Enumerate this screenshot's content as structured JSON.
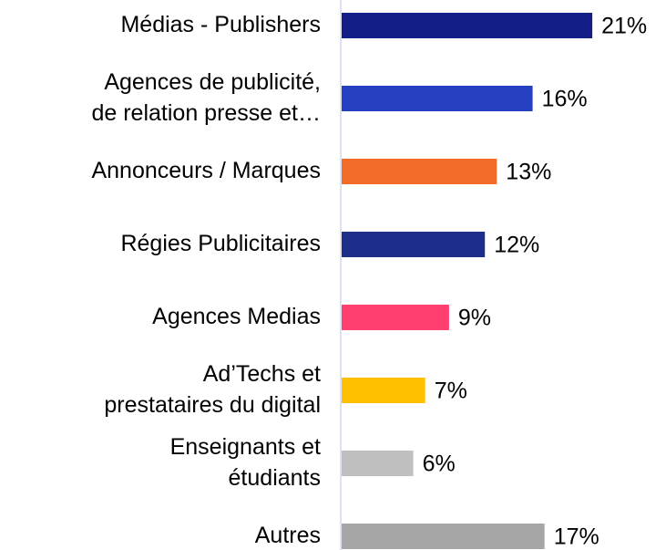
{
  "chart_data": {
    "type": "barh",
    "categories": [
      "Médias - Publishers",
      "Agences de publicité,\nde relation presse et…",
      "Annonceurs / Marques",
      "Régies Publicitaires",
      "Agences Medias",
      "Ad’Techs et\nprestataires du digital",
      "Enseignants et\nétudiants",
      "Autres"
    ],
    "values": [
      21,
      16,
      13,
      12,
      9,
      7,
      6,
      17
    ],
    "value_labels": [
      "21%",
      "16%",
      "13%",
      "12%",
      "9%",
      "7%",
      "6%",
      "17%"
    ],
    "colors": [
      "#141e87",
      "#2440c0",
      "#f26b27",
      "#1c2e8a",
      "#ff3f6f",
      "#ffc000",
      "#bfbfbf",
      "#a6a6a6"
    ]
  }
}
